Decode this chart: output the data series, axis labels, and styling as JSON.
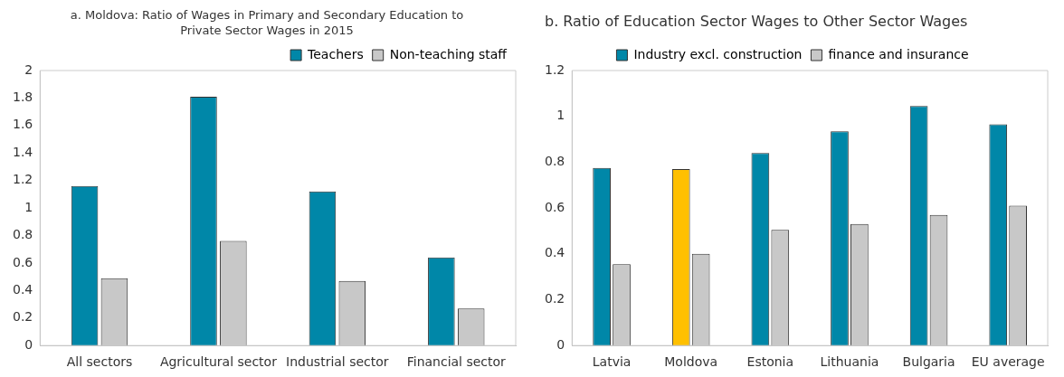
{
  "chart_data": [
    {
      "type": "bar",
      "title": "a. Moldova: Ratio of Wages in Primary and Secondary Education to Private Sector Wages in 2015",
      "categories": [
        "All sectors",
        "Agricultural sector",
        "Industrial sector",
        "Financial sector"
      ],
      "series": [
        {
          "name": "Teachers",
          "color": "#0087a8",
          "values": [
            1.16,
            1.81,
            1.12,
            0.64
          ]
        },
        {
          "name": "Non-teaching staff",
          "color": "#c8c8c8",
          "values": [
            0.49,
            0.76,
            0.47,
            0.27
          ]
        }
      ],
      "ylim": [
        0,
        2
      ],
      "yticks": [
        0,
        0.2,
        0.4,
        0.6,
        0.8,
        1,
        1.2,
        1.4,
        1.6,
        1.8,
        2
      ],
      "grid": false,
      "legend": "top right"
    },
    {
      "type": "bar",
      "title": "b. Ratio of Education Sector Wages to Other Sector Wages",
      "categories": [
        "Latvia",
        "Moldova",
        "Estonia",
        "Lithuania",
        "Bulgaria",
        "EU average"
      ],
      "series": [
        {
          "name": "Industry excl. construction",
          "color": "#0087a8",
          "colors": [
            "#0087a8",
            "#ffc000",
            "#0087a8",
            "#0087a8",
            "#0087a8",
            "#0087a8"
          ],
          "values": [
            0.775,
            0.77,
            0.84,
            0.935,
            1.045,
            0.965
          ]
        },
        {
          "name": "finance and insurance",
          "color": "#c8c8c8",
          "values": [
            0.355,
            0.4,
            0.505,
            0.53,
            0.57,
            0.61
          ]
        }
      ],
      "ylim": [
        0,
        1.2
      ],
      "yticks": [
        0,
        0.2,
        0.4,
        0.6,
        0.8,
        1,
        1.2
      ],
      "grid": false,
      "legend": "top"
    }
  ]
}
